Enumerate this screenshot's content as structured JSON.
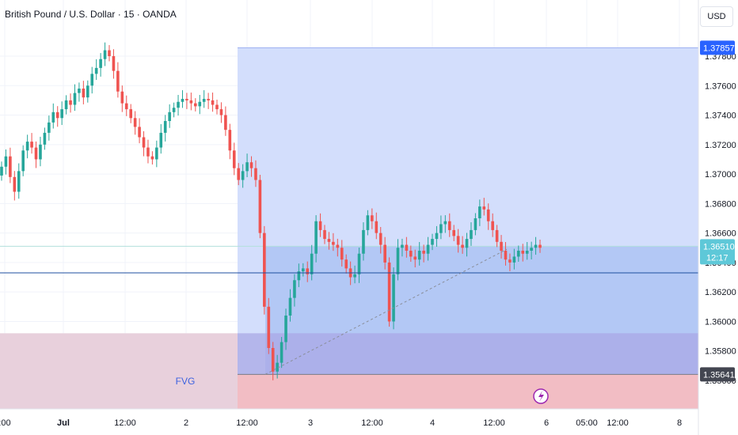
{
  "header": {
    "title": "British Pound / U.S. Dollar · 15 · OANDA",
    "currency_button": "USD"
  },
  "colors": {
    "up": "#26a69a",
    "down": "#ef5350",
    "zone_blue": "#d3defc",
    "zone_blue_inner": "#b3c8f5",
    "fvg": "#e8d0dc",
    "fvg_zone": "#f2bdc4",
    "hline": "#1e4fa0",
    "price_tag": "#2962ff",
    "last_tag": "#5ec8d8",
    "low_tag": "#434651"
  },
  "annotations": {
    "fvg_label": "FVG",
    "lightning_icon": "lightning-icon"
  },
  "chart_data": {
    "type": "candlestick",
    "symbol": "British Pound / U.S. Dollar",
    "timeframe": "15",
    "source": "OANDA",
    "y_axis": {
      "ticks": [
        "1.37800",
        "1.37600",
        "1.37400",
        "1.37200",
        "1.37000",
        "1.36800",
        "1.36600",
        "1.36400",
        "1.36200",
        "1.36000",
        "1.35800",
        "1.35600"
      ],
      "range": [
        1.354,
        1.38
      ]
    },
    "x_axis": {
      "ticks": [
        ":00",
        "Jul",
        "12:00",
        "2",
        "12:00",
        "3",
        "12:00",
        "4",
        "12:00",
        "6",
        "05:00",
        "12:00",
        "8"
      ]
    },
    "price_labels": {
      "top": "1.37857",
      "last": "1.36510",
      "countdown": "12:17",
      "low": "1.35641"
    },
    "horizontal_line": 1.3633,
    "zones": [
      {
        "name": "blue-range",
        "from": 1.35641,
        "to": 1.37857
      },
      {
        "name": "fvg",
        "from": 1.355,
        "to": 1.3592,
        "label": "FVG"
      },
      {
        "name": "fvg-target",
        "from": 1.354,
        "to": 1.35641
      }
    ],
    "trendline": {
      "from": [
        1.35641
      ],
      "to": [
        1.3649
      ]
    },
    "series_close_path": [
      1.3705,
      1.3712,
      1.3698,
      1.3688,
      1.3702,
      1.3716,
      1.3722,
      1.3718,
      1.371,
      1.372,
      1.3728,
      1.3735,
      1.3742,
      1.3738,
      1.3744,
      1.375,
      1.3747,
      1.3755,
      1.3758,
      1.3752,
      1.376,
      1.3768,
      1.3772,
      1.3778,
      1.3784,
      1.378,
      1.377,
      1.3756,
      1.3748,
      1.3744,
      1.3738,
      1.3732,
      1.3725,
      1.3718,
      1.3712,
      1.371,
      1.3718,
      1.3728,
      1.3736,
      1.3742,
      1.3745,
      1.3749,
      1.3751,
      1.375,
      1.3748,
      1.3746,
      1.3749,
      1.3751,
      1.375,
      1.3747,
      1.3744,
      1.374,
      1.373,
      1.3716,
      1.3704,
      1.3696,
      1.3702,
      1.3708,
      1.3704,
      1.3696,
      1.366,
      1.361,
      1.3582,
      1.3566,
      1.3572,
      1.3586,
      1.3604,
      1.3616,
      1.3628,
      1.3634,
      1.3636,
      1.3632,
      1.3646,
      1.3668,
      1.3662,
      1.3656,
      1.3654,
      1.3652,
      1.365,
      1.3642,
      1.3636,
      1.363,
      1.3632,
      1.3646,
      1.3662,
      1.3672,
      1.3668,
      1.366,
      1.3652,
      1.364,
      1.36,
      1.3632,
      1.365,
      1.3652,
      1.3648,
      1.3644,
      1.3642,
      1.3648,
      1.3646,
      1.3652,
      1.3656,
      1.366,
      1.3666,
      1.3668,
      1.3662,
      1.3658,
      1.3652,
      1.365,
      1.3656,
      1.3662,
      1.367,
      1.3678,
      1.3676,
      1.3668,
      1.3662,
      1.3654,
      1.3648,
      1.3642,
      1.364,
      1.3644,
      1.3648,
      1.3646,
      1.3648,
      1.365,
      1.3652,
      1.365
    ]
  }
}
